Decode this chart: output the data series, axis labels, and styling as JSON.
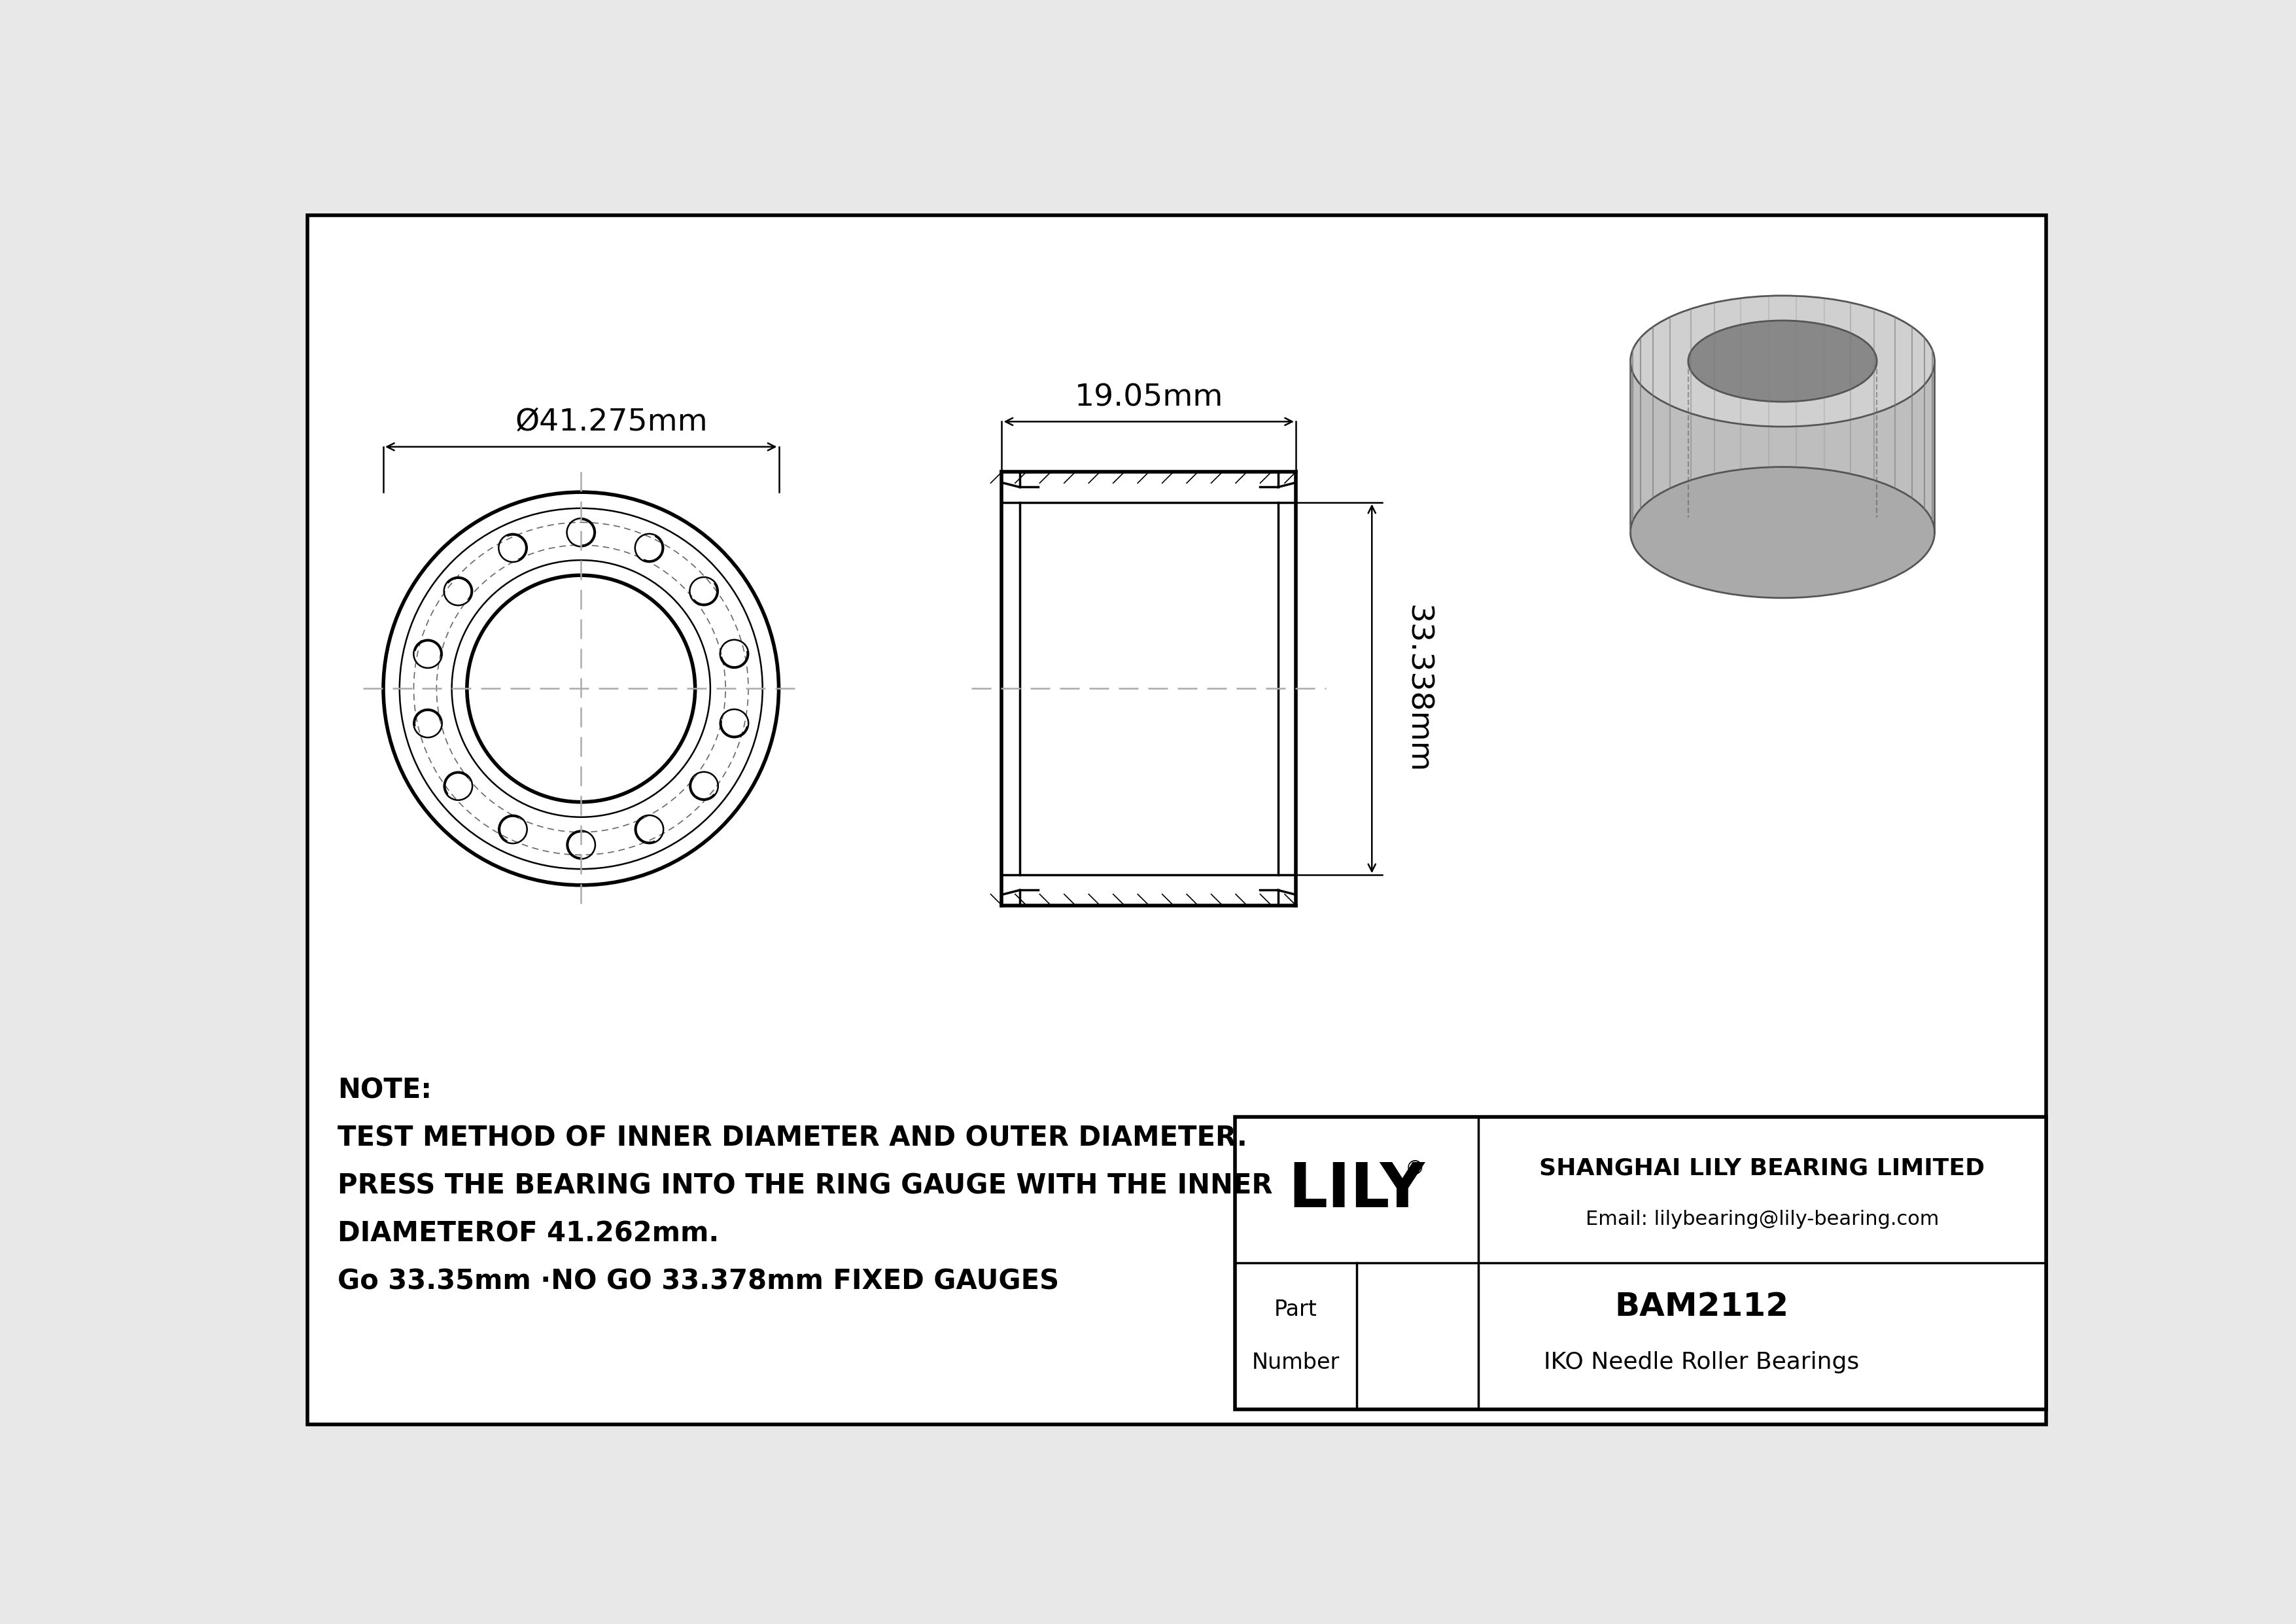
{
  "bg_color": "#e8e8e8",
  "line_color": "#000000",
  "drawing_bg": "#ffffff",
  "part_number": "BAM2112",
  "bearing_type": "IKO Needle Roller Bearings",
  "company": "SHANGHAI LILY BEARING LIMITED",
  "email": "Email: lilybearing@lily-bearing.com",
  "logo": "LILY",
  "outer_diameter_label": "Ø41.275mm",
  "width_label": "19.05mm",
  "height_label": "33.338mm",
  "note_line1": "NOTE:",
  "note_line2": "TEST METHOD OF INNER DIAMETER AND OUTER DIAMETER.",
  "note_line3": "PRESS THE BEARING INTO THE RING GAUGE WITH THE INNER",
  "note_line4": "DIAMETEROF 41.262mm.",
  "note_line5": "Go 33.35mm ·NO GO 33.378mm FIXED GAUGES",
  "part_label": "Part",
  "number_label": "Number"
}
